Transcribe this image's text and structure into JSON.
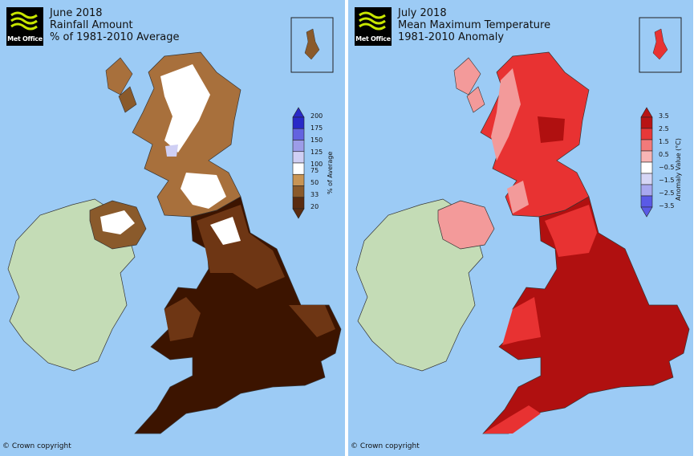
{
  "left_panel": {
    "logo_text": "Met Office",
    "title_lines": [
      "June 2018",
      "Rainfall Amount",
      "% of 1981-2010 Average"
    ],
    "legend_title": "% of Average",
    "legend_values": [
      "200",
      "175",
      "150",
      "125",
      "100",
      "75",
      "50",
      "33",
      "20"
    ],
    "legend_colors": [
      "#2929c8",
      "#6363e0",
      "#9c9ce8",
      "#cfcff4",
      "#ffffff",
      "#c89454",
      "#8a5a2b",
      "#5a2c10"
    ],
    "copyright": "© Crown copyright"
  },
  "right_panel": {
    "logo_text": "Met Office",
    "title_lines": [
      "July 2018",
      "Mean Maximum Temperature",
      "1981-2010 Anomaly"
    ],
    "legend_title": "Anomaly Value (°C)",
    "legend_values": [
      "3.5",
      "2.5",
      "1.5",
      "0.5",
      "−0.5",
      "−1.5",
      "−2.5",
      "−3.5"
    ],
    "legend_colors": [
      "#b81414",
      "#e83838",
      "#f27a7a",
      "#f7b5b5",
      "#ffffff",
      "#d6d6f5",
      "#a8a8ef",
      "#5a5ae6"
    ],
    "copyright": "© Crown copyright"
  },
  "colors": {
    "sea": "#9ccbf5",
    "ireland_land": "#c4dcb6",
    "rain_very_low": "#3c1400",
    "rain_low": "#6e3614",
    "rain_below": "#a8703c",
    "rain_near": "#ffffff",
    "temp_high": "#b01010",
    "temp_mid": "#e83232",
    "temp_low": "#f39a9a"
  }
}
